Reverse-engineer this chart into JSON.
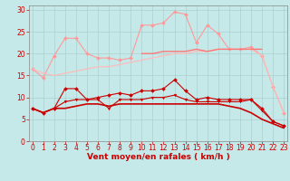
{
  "x": [
    0,
    1,
    2,
    3,
    4,
    5,
    6,
    7,
    8,
    9,
    10,
    11,
    12,
    13,
    14,
    15,
    16,
    17,
    18,
    19,
    20,
    21,
    22,
    23
  ],
  "series": [
    {
      "name": "light_pink_zigzag",
      "color": "#ff9999",
      "marker": "D",
      "markersize": 2.0,
      "linewidth": 0.8,
      "values": [
        16.5,
        14.5,
        19.5,
        23.5,
        23.5,
        20.0,
        19.0,
        19.0,
        18.5,
        19.0,
        26.5,
        26.5,
        27.0,
        29.5,
        29.0,
        22.5,
        26.5,
        24.5,
        21.0,
        21.0,
        21.5,
        19.5,
        12.5,
        6.5
      ]
    },
    {
      "name": "pink_diagonal",
      "color": "#ffbbbb",
      "marker": null,
      "markersize": 0,
      "linewidth": 0.9,
      "values": [
        16.5,
        15.5,
        15.0,
        15.5,
        16.0,
        16.5,
        17.0,
        17.0,
        17.5,
        18.0,
        18.5,
        19.0,
        19.5,
        20.0,
        20.0,
        20.5,
        20.5,
        21.0,
        21.0,
        21.0,
        21.0,
        19.5,
        12.5,
        6.5
      ]
    },
    {
      "name": "medium_pink_flat",
      "color": "#ff7777",
      "marker": null,
      "markersize": 0,
      "linewidth": 1.0,
      "values": [
        null,
        null,
        null,
        null,
        null,
        null,
        null,
        null,
        null,
        null,
        20.0,
        20.0,
        20.5,
        20.5,
        20.5,
        21.0,
        20.5,
        21.0,
        21.0,
        21.0,
        21.0,
        21.0,
        null,
        null
      ]
    },
    {
      "name": "dark_red_upper",
      "color": "#cc0000",
      "marker": "D",
      "markersize": 2.0,
      "linewidth": 0.8,
      "values": [
        7.5,
        6.5,
        7.5,
        12.0,
        12.0,
        9.5,
        10.0,
        10.5,
        11.0,
        10.5,
        11.5,
        11.5,
        12.0,
        14.0,
        11.5,
        9.5,
        10.0,
        9.5,
        9.5,
        9.5,
        9.5,
        7.5,
        4.5,
        3.5
      ]
    },
    {
      "name": "dark_red_mid",
      "color": "#cc0000",
      "marker": "v",
      "markersize": 2.0,
      "linewidth": 0.8,
      "values": [
        7.5,
        6.5,
        7.5,
        9.0,
        9.5,
        9.5,
        9.5,
        7.5,
        9.5,
        9.5,
        9.5,
        10.0,
        10.0,
        10.5,
        9.5,
        9.0,
        9.0,
        9.0,
        9.0,
        9.0,
        9.5,
        7.0,
        4.5,
        3.5
      ]
    },
    {
      "name": "dark_red_lower",
      "color": "#cc0000",
      "marker": null,
      "markersize": 0,
      "linewidth": 1.2,
      "values": [
        7.5,
        6.5,
        7.5,
        7.5,
        8.0,
        8.5,
        8.5,
        8.0,
        8.5,
        8.5,
        8.5,
        8.5,
        8.5,
        8.5,
        8.5,
        8.5,
        8.5,
        8.5,
        8.0,
        7.5,
        6.5,
        5.0,
        4.0,
        3.0
      ]
    }
  ],
  "xlim": [
    -0.3,
    23.3
  ],
  "ylim": [
    0,
    31
  ],
  "yticks": [
    0,
    5,
    10,
    15,
    20,
    25,
    30
  ],
  "xticks": [
    0,
    1,
    2,
    3,
    4,
    5,
    6,
    7,
    8,
    9,
    10,
    11,
    12,
    13,
    14,
    15,
    16,
    17,
    18,
    19,
    20,
    21,
    22,
    23
  ],
  "xlabel": "Vent moyen/en rafales ( km/h )",
  "background_color": "#c5e8e8",
  "grid_color": "#aacccc",
  "tick_color": "#cc0000",
  "label_color": "#cc0000",
  "xlabel_fontsize": 6.5,
  "tick_fontsize": 5.5
}
